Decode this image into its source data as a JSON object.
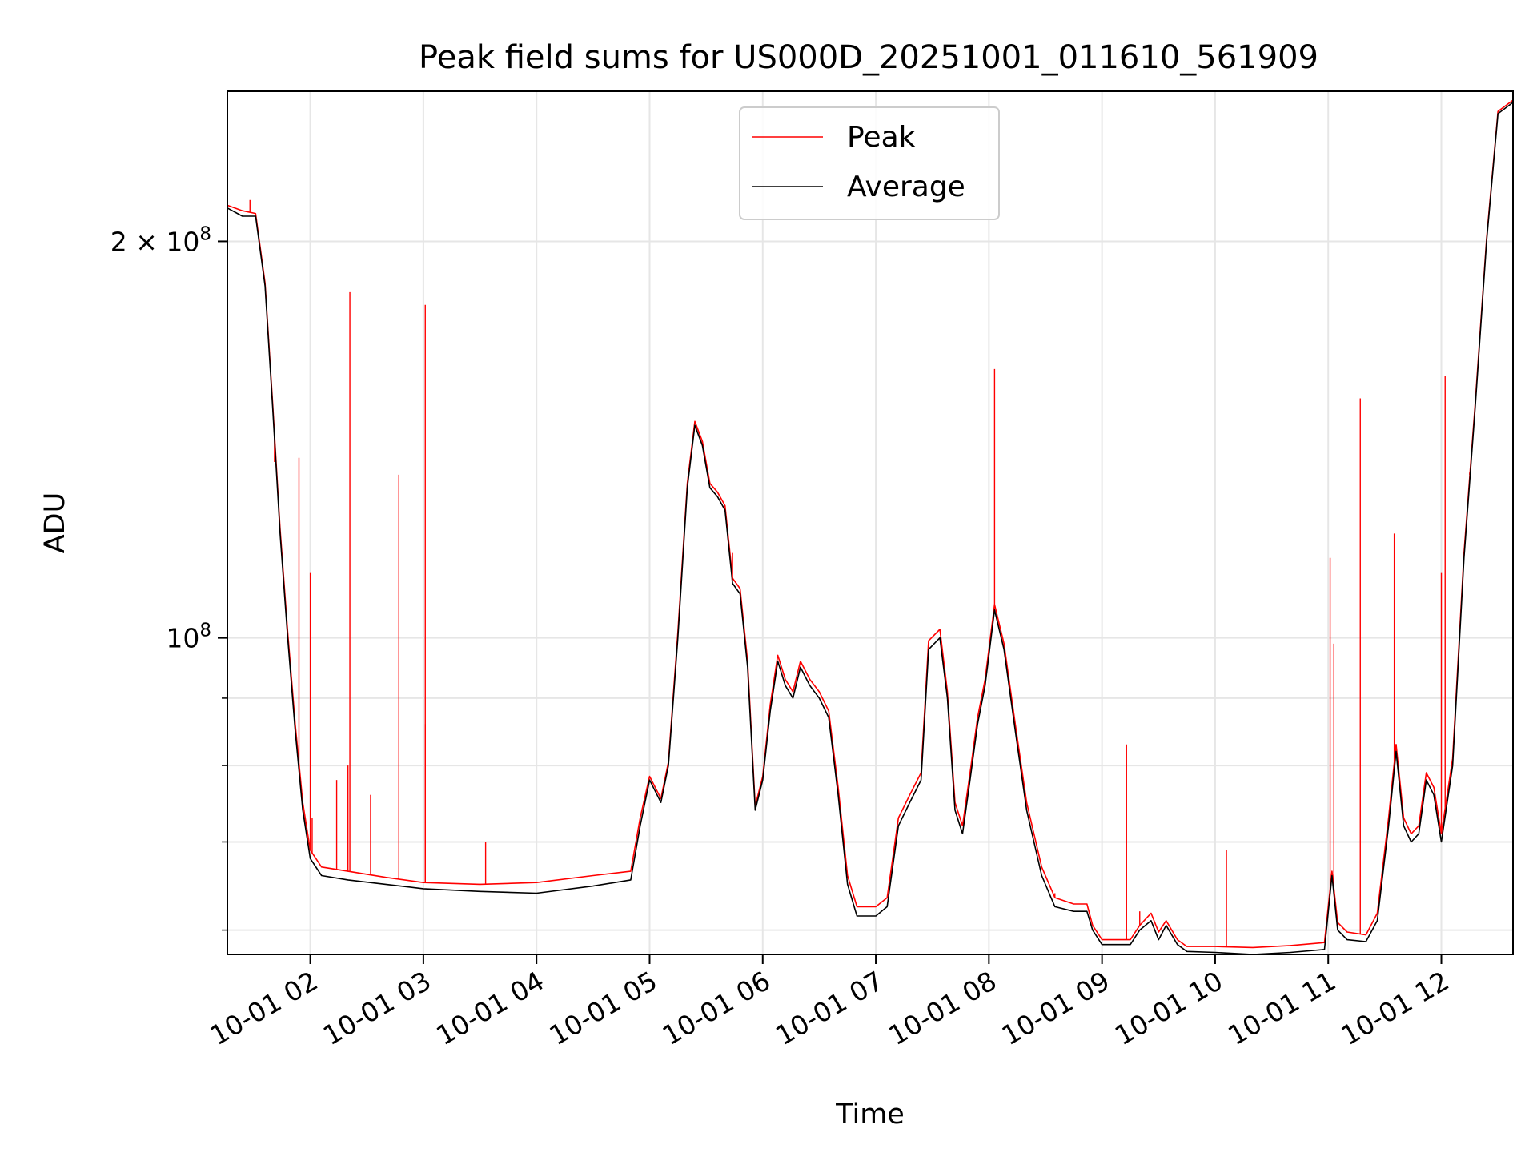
{
  "chart_data": {
    "type": "line",
    "title": "Peak field sums for US000D_20251001_011610_561909",
    "xlabel": "Time",
    "ylabel": "ADU",
    "y_scale": "log",
    "ylim": [
      57500000,
      260000000
    ],
    "x_range": [
      "2025-10-01 01:16",
      "2025-10-01 12:38"
    ],
    "grid": true,
    "legend_position": "upper center",
    "x_ticks": [
      {
        "t": "2025-10-01 02:00",
        "label": "10-01 02"
      },
      {
        "t": "2025-10-01 03:00",
        "label": "10-01 03"
      },
      {
        "t": "2025-10-01 04:00",
        "label": "10-01 04"
      },
      {
        "t": "2025-10-01 05:00",
        "label": "10-01 05"
      },
      {
        "t": "2025-10-01 06:00",
        "label": "10-01 06"
      },
      {
        "t": "2025-10-01 07:00",
        "label": "10-01 07"
      },
      {
        "t": "2025-10-01 08:00",
        "label": "10-01 08"
      },
      {
        "t": "2025-10-01 09:00",
        "label": "10-01 09"
      },
      {
        "t": "2025-10-01 10:00",
        "label": "10-01 10"
      },
      {
        "t": "2025-10-01 11:00",
        "label": "10-01 11"
      },
      {
        "t": "2025-10-01 12:00",
        "label": "10-01 12"
      }
    ],
    "y_ticks_major": [
      {
        "value": 200000000,
        "mantissa": "2",
        "times": "×",
        "base": "10",
        "exp": "8"
      },
      {
        "value": 100000000,
        "mantissa": "",
        "times": "",
        "base": "10",
        "exp": "8"
      }
    ],
    "y_ticks_minor": [
      60000000,
      70000000,
      80000000,
      90000000
    ],
    "series": [
      {
        "name": "Average",
        "color": "#000000",
        "points": [
          [
            "2025-10-01 01:16",
            212000000
          ],
          [
            "2025-10-01 01:24",
            209000000
          ],
          [
            "2025-10-01 01:31",
            209000000
          ],
          [
            "2025-10-01 01:36",
            185000000
          ],
          [
            "2025-10-01 01:40",
            150000000
          ],
          [
            "2025-10-01 01:44",
            120000000
          ],
          [
            "2025-10-01 01:48",
            100000000
          ],
          [
            "2025-10-01 01:52",
            85000000
          ],
          [
            "2025-10-01 01:56",
            74000000
          ],
          [
            "2025-10-01 02:00",
            68000000
          ],
          [
            "2025-10-01 02:06",
            66000000
          ],
          [
            "2025-10-01 02:20",
            65500000
          ],
          [
            "2025-10-01 02:40",
            65000000
          ],
          [
            "2025-10-01 03:00",
            64500000
          ],
          [
            "2025-10-01 03:30",
            64200000
          ],
          [
            "2025-10-01 04:00",
            64000000
          ],
          [
            "2025-10-01 04:30",
            64800000
          ],
          [
            "2025-10-01 04:50",
            65500000
          ],
          [
            "2025-10-01 04:55",
            72000000
          ],
          [
            "2025-10-01 05:00",
            78000000
          ],
          [
            "2025-10-01 05:06",
            75000000
          ],
          [
            "2025-10-01 05:10",
            80000000
          ],
          [
            "2025-10-01 05:15",
            100000000
          ],
          [
            "2025-10-01 05:20",
            130000000
          ],
          [
            "2025-10-01 05:24",
            145000000
          ],
          [
            "2025-10-01 05:28",
            140000000
          ],
          [
            "2025-10-01 05:32",
            130000000
          ],
          [
            "2025-10-01 05:36",
            128000000
          ],
          [
            "2025-10-01 05:40",
            125000000
          ],
          [
            "2025-10-01 05:44",
            110000000
          ],
          [
            "2025-10-01 05:48",
            108000000
          ],
          [
            "2025-10-01 05:52",
            95000000
          ],
          [
            "2025-10-01 05:56",
            74000000
          ],
          [
            "2025-10-01 06:00",
            78000000
          ],
          [
            "2025-10-01 06:04",
            88000000
          ],
          [
            "2025-10-01 06:08",
            96000000
          ],
          [
            "2025-10-01 06:12",
            92000000
          ],
          [
            "2025-10-01 06:16",
            90000000
          ],
          [
            "2025-10-01 06:20",
            95000000
          ],
          [
            "2025-10-01 06:25",
            92000000
          ],
          [
            "2025-10-01 06:30",
            90000000
          ],
          [
            "2025-10-01 06:35",
            87000000
          ],
          [
            "2025-10-01 06:40",
            76000000
          ],
          [
            "2025-10-01 06:45",
            65000000
          ],
          [
            "2025-10-01 06:50",
            61500000
          ],
          [
            "2025-10-01 07:00",
            61500000
          ],
          [
            "2025-10-01 07:06",
            62500000
          ],
          [
            "2025-10-01 07:12",
            72000000
          ],
          [
            "2025-10-01 07:18",
            75000000
          ],
          [
            "2025-10-01 07:24",
            78000000
          ],
          [
            "2025-10-01 07:28",
            98000000
          ],
          [
            "2025-10-01 07:34",
            100000000
          ],
          [
            "2025-10-01 07:38",
            90000000
          ],
          [
            "2025-10-01 07:42",
            74000000
          ],
          [
            "2025-10-01 07:46",
            71000000
          ],
          [
            "2025-10-01 07:50",
            78000000
          ],
          [
            "2025-10-01 07:54",
            86000000
          ],
          [
            "2025-10-01 07:58",
            92000000
          ],
          [
            "2025-10-01 08:03",
            105000000
          ],
          [
            "2025-10-01 08:08",
            98000000
          ],
          [
            "2025-10-01 08:14",
            85000000
          ],
          [
            "2025-10-01 08:20",
            74000000
          ],
          [
            "2025-10-01 08:28",
            66000000
          ],
          [
            "2025-10-01 08:35",
            62500000
          ],
          [
            "2025-10-01 08:45",
            62000000
          ],
          [
            "2025-10-01 08:52",
            62000000
          ],
          [
            "2025-10-01 08:55",
            60000000
          ],
          [
            "2025-10-01 09:00",
            58500000
          ],
          [
            "2025-10-01 09:15",
            58500000
          ],
          [
            "2025-10-01 09:20",
            60000000
          ],
          [
            "2025-10-01 09:26",
            61000000
          ],
          [
            "2025-10-01 09:30",
            59000000
          ],
          [
            "2025-10-01 09:34",
            60500000
          ],
          [
            "2025-10-01 09:40",
            58500000
          ],
          [
            "2025-10-01 09:45",
            57800000
          ],
          [
            "2025-10-01 10:00",
            57700000
          ],
          [
            "2025-10-01 10:20",
            57500000
          ],
          [
            "2025-10-01 10:40",
            57700000
          ],
          [
            "2025-10-01 10:58",
            58000000
          ],
          [
            "2025-10-01 11:02",
            66000000
          ],
          [
            "2025-10-01 11:05",
            60000000
          ],
          [
            "2025-10-01 11:10",
            59000000
          ],
          [
            "2025-10-01 11:20",
            58800000
          ],
          [
            "2025-10-01 11:26",
            61000000
          ],
          [
            "2025-10-01 11:32",
            72000000
          ],
          [
            "2025-10-01 11:36",
            82000000
          ],
          [
            "2025-10-01 11:40",
            72000000
          ],
          [
            "2025-10-01 11:44",
            70000000
          ],
          [
            "2025-10-01 11:48",
            71000000
          ],
          [
            "2025-10-01 11:52",
            78000000
          ],
          [
            "2025-10-01 11:56",
            76000000
          ],
          [
            "2025-10-01 12:00",
            70000000
          ],
          [
            "2025-10-01 12:06",
            80000000
          ],
          [
            "2025-10-01 12:12",
            115000000
          ],
          [
            "2025-10-01 12:18",
            150000000
          ],
          [
            "2025-10-01 12:24",
            200000000
          ],
          [
            "2025-10-01 12:30",
            250000000
          ],
          [
            "2025-10-01 12:38",
            255000000
          ]
        ]
      },
      {
        "name": "Peak",
        "color": "#ff0000",
        "points": [
          [
            "2025-10-01 01:16",
            213000000
          ],
          [
            "2025-10-01 01:24",
            211000000
          ],
          [
            "2025-10-01 01:31",
            210000000
          ],
          [
            "2025-10-01 01:36",
            186000000
          ],
          [
            "2025-10-01 01:40",
            151000000
          ],
          [
            "2025-10-01 01:44",
            121000000
          ],
          [
            "2025-10-01 01:48",
            101000000
          ],
          [
            "2025-10-01 01:52",
            86000000
          ],
          [
            "2025-10-01 01:56",
            75000000
          ],
          [
            "2025-10-01 02:00",
            69000000
          ],
          [
            "2025-10-01 02:06",
            67000000
          ],
          [
            "2025-10-01 02:20",
            66500000
          ],
          [
            "2025-10-01 02:40",
            65800000
          ],
          [
            "2025-10-01 03:00",
            65200000
          ],
          [
            "2025-10-01 03:30",
            65000000
          ],
          [
            "2025-10-01 04:00",
            65200000
          ],
          [
            "2025-10-01 04:30",
            66000000
          ],
          [
            "2025-10-01 04:50",
            66500000
          ],
          [
            "2025-10-01 04:55",
            73000000
          ],
          [
            "2025-10-01 05:00",
            78500000
          ],
          [
            "2025-10-01 05:06",
            75500000
          ],
          [
            "2025-10-01 05:10",
            80500000
          ],
          [
            "2025-10-01 05:15",
            101000000
          ],
          [
            "2025-10-01 05:20",
            131000000
          ],
          [
            "2025-10-01 05:24",
            146000000
          ],
          [
            "2025-10-01 05:28",
            141000000
          ],
          [
            "2025-10-01 05:32",
            131000000
          ],
          [
            "2025-10-01 05:36",
            129000000
          ],
          [
            "2025-10-01 05:40",
            126000000
          ],
          [
            "2025-10-01 05:44",
            111000000
          ],
          [
            "2025-10-01 05:48",
            109000000
          ],
          [
            "2025-10-01 05:52",
            96000000
          ],
          [
            "2025-10-01 05:56",
            74500000
          ],
          [
            "2025-10-01 06:00",
            78500000
          ],
          [
            "2025-10-01 06:04",
            89000000
          ],
          [
            "2025-10-01 06:08",
            97000000
          ],
          [
            "2025-10-01 06:12",
            93000000
          ],
          [
            "2025-10-01 06:16",
            91000000
          ],
          [
            "2025-10-01 06:20",
            96000000
          ],
          [
            "2025-10-01 06:25",
            93000000
          ],
          [
            "2025-10-01 06:30",
            91000000
          ],
          [
            "2025-10-01 06:35",
            88000000
          ],
          [
            "2025-10-01 06:40",
            77000000
          ],
          [
            "2025-10-01 06:45",
            66000000
          ],
          [
            "2025-10-01 06:50",
            62500000
          ],
          [
            "2025-10-01 07:00",
            62500000
          ],
          [
            "2025-10-01 07:06",
            63500000
          ],
          [
            "2025-10-01 07:12",
            73000000
          ],
          [
            "2025-10-01 07:18",
            76000000
          ],
          [
            "2025-10-01 07:24",
            79000000
          ],
          [
            "2025-10-01 07:28",
            99500000
          ],
          [
            "2025-10-01 07:34",
            101500000
          ],
          [
            "2025-10-01 07:38",
            91000000
          ],
          [
            "2025-10-01 07:42",
            75000000
          ],
          [
            "2025-10-01 07:46",
            72000000
          ],
          [
            "2025-10-01 07:50",
            79000000
          ],
          [
            "2025-10-01 07:54",
            87000000
          ],
          [
            "2025-10-01 07:58",
            93000000
          ],
          [
            "2025-10-01 08:03",
            106000000
          ],
          [
            "2025-10-01 08:08",
            99000000
          ],
          [
            "2025-10-01 08:14",
            86000000
          ],
          [
            "2025-10-01 08:20",
            75000000
          ],
          [
            "2025-10-01 08:28",
            67000000
          ],
          [
            "2025-10-01 08:35",
            63500000
          ],
          [
            "2025-10-01 08:45",
            62800000
          ],
          [
            "2025-10-01 08:52",
            62800000
          ],
          [
            "2025-10-01 08:55",
            60500000
          ],
          [
            "2025-10-01 09:00",
            59000000
          ],
          [
            "2025-10-01 09:15",
            59000000
          ],
          [
            "2025-10-01 09:20",
            60500000
          ],
          [
            "2025-10-01 09:26",
            61800000
          ],
          [
            "2025-10-01 09:30",
            59800000
          ],
          [
            "2025-10-01 09:34",
            61000000
          ],
          [
            "2025-10-01 09:40",
            59000000
          ],
          [
            "2025-10-01 09:45",
            58300000
          ],
          [
            "2025-10-01 10:00",
            58300000
          ],
          [
            "2025-10-01 10:20",
            58200000
          ],
          [
            "2025-10-01 10:40",
            58400000
          ],
          [
            "2025-10-01 10:58",
            58700000
          ],
          [
            "2025-10-01 11:02",
            66500000
          ],
          [
            "2025-10-01 11:05",
            60800000
          ],
          [
            "2025-10-01 11:10",
            59800000
          ],
          [
            "2025-10-01 11:20",
            59500000
          ],
          [
            "2025-10-01 11:26",
            61800000
          ],
          [
            "2025-10-01 11:32",
            73000000
          ],
          [
            "2025-10-01 11:36",
            83000000
          ],
          [
            "2025-10-01 11:40",
            73000000
          ],
          [
            "2025-10-01 11:44",
            71000000
          ],
          [
            "2025-10-01 11:48",
            72000000
          ],
          [
            "2025-10-01 11:52",
            79000000
          ],
          [
            "2025-10-01 11:56",
            77000000
          ],
          [
            "2025-10-01 12:00",
            71000000
          ],
          [
            "2025-10-01 12:06",
            81000000
          ],
          [
            "2025-10-01 12:12",
            116000000
          ],
          [
            "2025-10-01 12:18",
            151000000
          ],
          [
            "2025-10-01 12:24",
            201000000
          ],
          [
            "2025-10-01 12:30",
            251000000
          ],
          [
            "2025-10-01 12:38",
            256000000
          ]
        ],
        "spikes": [
          [
            "2025-10-01 01:28",
            215000000
          ],
          [
            "2025-10-01 01:41",
            136000000
          ],
          [
            "2025-10-01 01:54",
            137000000
          ],
          [
            "2025-10-01 02:00",
            112000000
          ],
          [
            "2025-10-01 02:01",
            73000000
          ],
          [
            "2025-10-01 02:14",
            78000000
          ],
          [
            "2025-10-01 02:20",
            80000000
          ],
          [
            "2025-10-01 02:21",
            183000000
          ],
          [
            "2025-10-01 02:32",
            76000000
          ],
          [
            "2025-10-01 02:47",
            133000000
          ],
          [
            "2025-10-01 03:01",
            86000000
          ],
          [
            "2025-10-01 03:01",
            179000000
          ],
          [
            "2025-10-01 03:33",
            70000000
          ],
          [
            "2025-10-01 05:44",
            116000000
          ],
          [
            "2025-10-01 08:03",
            160000000
          ],
          [
            "2025-10-01 08:35",
            64000000
          ],
          [
            "2025-10-01 09:13",
            83000000
          ],
          [
            "2025-10-01 09:20",
            62000000
          ],
          [
            "2025-10-01 10:06",
            69000000
          ],
          [
            "2025-10-01 11:01",
            115000000
          ],
          [
            "2025-10-01 11:03",
            99000000
          ],
          [
            "2025-10-01 11:17",
            152000000
          ],
          [
            "2025-10-01 11:35",
            120000000
          ],
          [
            "2025-10-01 12:00",
            112000000
          ],
          [
            "2025-10-01 12:02",
            158000000
          ],
          [
            "2025-10-01 12:15",
            133000000
          ]
        ]
      }
    ]
  }
}
